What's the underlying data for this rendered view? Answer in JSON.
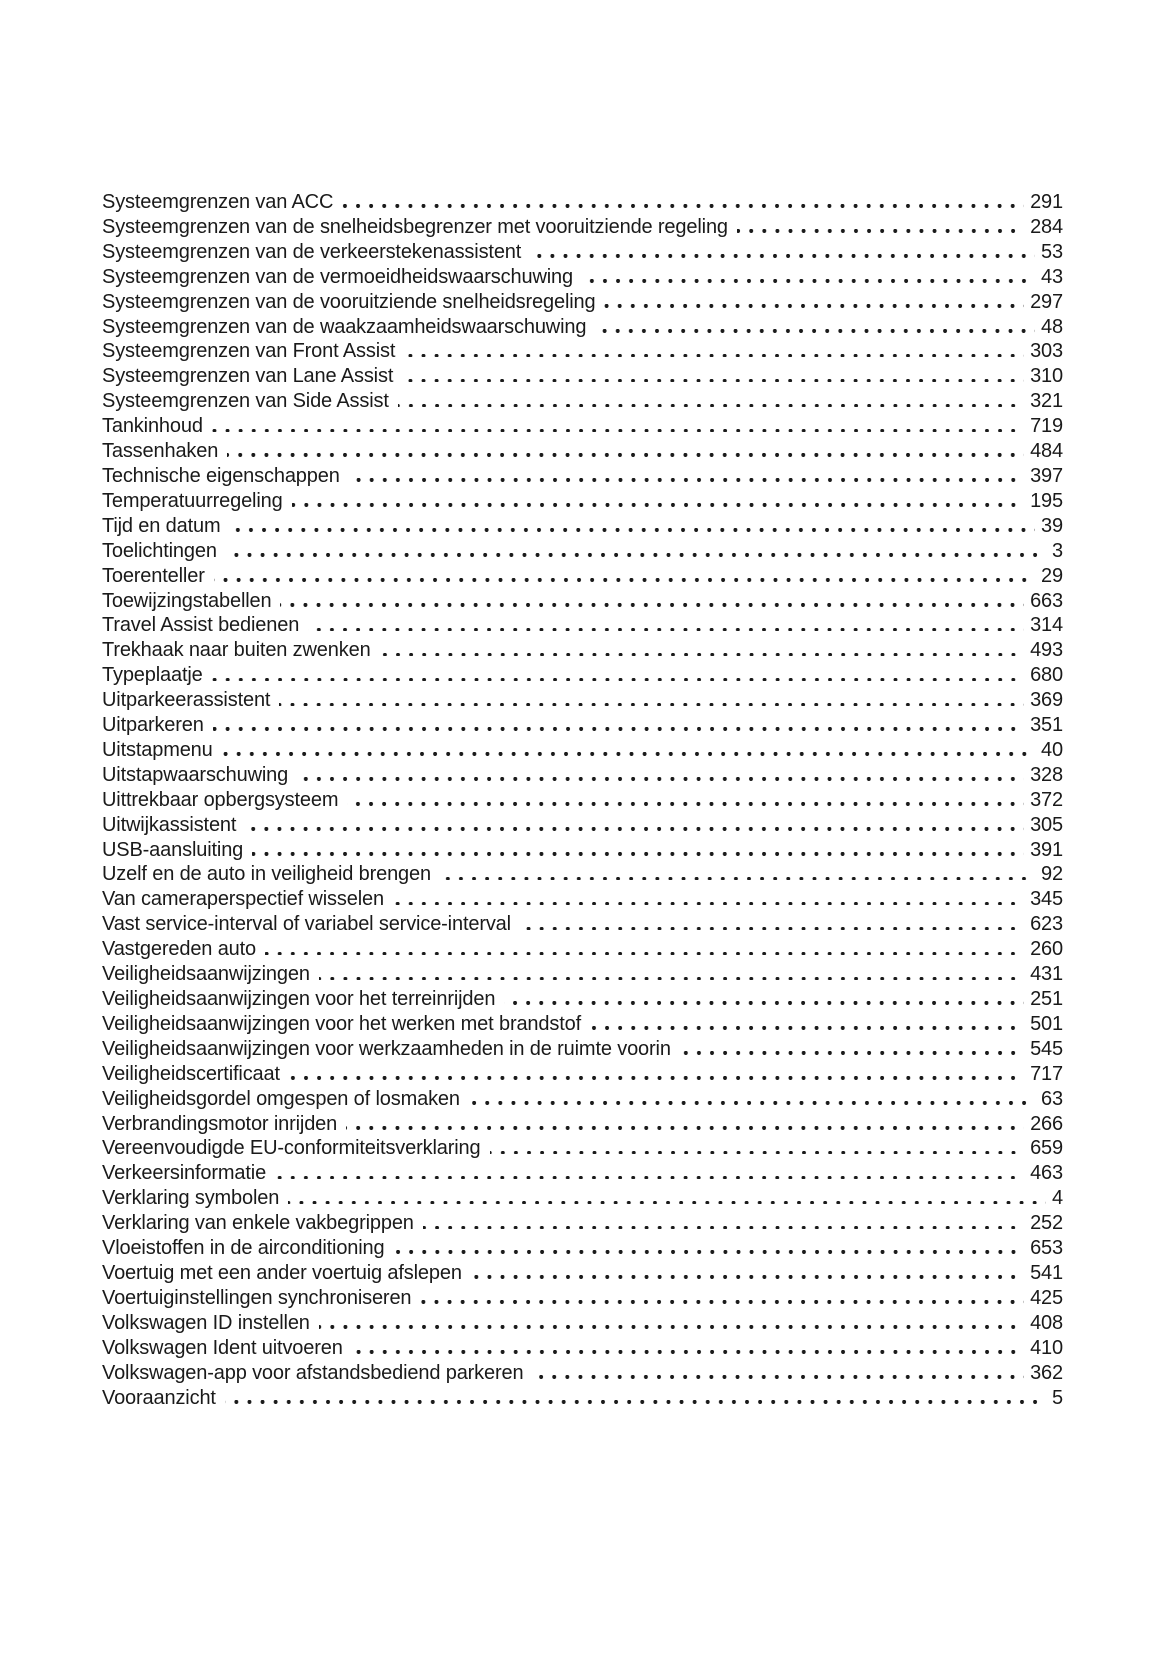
{
  "colors": {
    "background": "#ffffff",
    "text": "#1a1a1a"
  },
  "document": {
    "index_entries": [
      {
        "label": "Systeemgrenzen van ACC",
        "page": "291"
      },
      {
        "label": "Systeemgrenzen van de snelheidsbegrenzer met vooruitziende regeling",
        "page": "284"
      },
      {
        "label": "Systeemgrenzen van de verkeerstekenassistent",
        "page": "53"
      },
      {
        "label": "Systeemgrenzen van de vermoeidheidswaarschuwing",
        "page": "43"
      },
      {
        "label": "Systeemgrenzen van de vooruitziende snelheidsregeling",
        "page": "297"
      },
      {
        "label": "Systeemgrenzen van de waakzaamheidswaarschuwing",
        "page": "48"
      },
      {
        "label": "Systeemgrenzen van Front Assist",
        "page": "303"
      },
      {
        "label": "Systeemgrenzen van Lane Assist",
        "page": "310"
      },
      {
        "label": "Systeemgrenzen van Side Assist",
        "page": "321"
      },
      {
        "label": "Tankinhoud",
        "page": "719"
      },
      {
        "label": "Tassenhaken",
        "page": "484"
      },
      {
        "label": "Technische eigenschappen",
        "page": "397"
      },
      {
        "label": "Temperatuurregeling",
        "page": "195"
      },
      {
        "label": "Tijd en datum",
        "page": "39"
      },
      {
        "label": "Toelichtingen",
        "page": "3"
      },
      {
        "label": "Toerenteller",
        "page": "29"
      },
      {
        "label": "Toewijzingstabellen",
        "page": "663"
      },
      {
        "label": "Travel Assist bedienen",
        "page": "314"
      },
      {
        "label": "Trekhaak naar buiten zwenken",
        "page": "493"
      },
      {
        "label": "Typeplaatje",
        "page": "680"
      },
      {
        "label": "Uitparkeerassistent",
        "page": "369"
      },
      {
        "label": "Uitparkeren",
        "page": "351"
      },
      {
        "label": "Uitstapmenu",
        "page": "40"
      },
      {
        "label": "Uitstapwaarschuwing",
        "page": "328"
      },
      {
        "label": "Uittrekbaar opbergsysteem",
        "page": "372"
      },
      {
        "label": "Uitwijkassistent",
        "page": "305"
      },
      {
        "label": "USB-aansluiting",
        "page": "391"
      },
      {
        "label": "Uzelf en de auto in veiligheid brengen",
        "page": "92"
      },
      {
        "label": "Van cameraperspectief wisselen",
        "page": "345"
      },
      {
        "label": "Vast service-interval of variabel service-interval",
        "page": "623"
      },
      {
        "label": "Vastgereden auto",
        "page": "260"
      },
      {
        "label": "Veiligheidsaanwijzingen",
        "page": "431"
      },
      {
        "label": "Veiligheidsaanwijzingen voor het terreinrijden",
        "page": "251"
      },
      {
        "label": "Veiligheidsaanwijzingen voor het werken met brandstof",
        "page": "501"
      },
      {
        "label": "Veiligheidsaanwijzingen voor werkzaamheden in de ruimte voorin",
        "page": "545"
      },
      {
        "label": "Veiligheidscertificaat",
        "page": "717"
      },
      {
        "label": "Veiligheidsgordel omgespen of losmaken",
        "page": "63"
      },
      {
        "label": "Verbrandingsmotor inrijden",
        "page": "266"
      },
      {
        "label": "Vereenvoudigde EU-conformiteitsverklaring",
        "page": "659"
      },
      {
        "label": "Verkeersinformatie",
        "page": "463"
      },
      {
        "label": "Verklaring symbolen",
        "page": "4"
      },
      {
        "label": "Verklaring van enkele vakbegrippen",
        "page": "252"
      },
      {
        "label": "Vloeistoffen in de airconditioning",
        "page": "653"
      },
      {
        "label": "Voertuig met een ander voertuig afslepen",
        "page": "541"
      },
      {
        "label": "Voertuiginstellingen synchroniseren",
        "page": "425"
      },
      {
        "label": "Volkswagen ID instellen",
        "page": "408"
      },
      {
        "label": "Volkswagen Ident uitvoeren",
        "page": "410"
      },
      {
        "label": "Volkswagen-app voor afstandsbediend parkeren",
        "page": "362"
      },
      {
        "label": "Vooraanzicht",
        "page": "5"
      }
    ]
  }
}
